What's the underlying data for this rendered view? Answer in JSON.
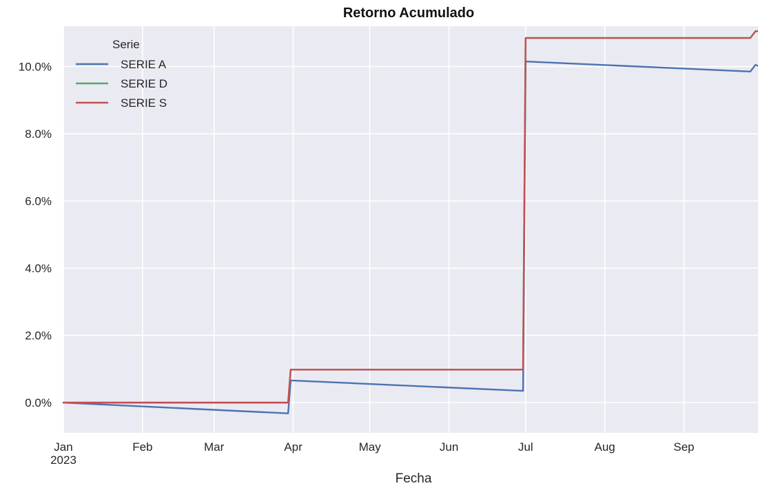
{
  "chart_data": {
    "type": "line",
    "title": "Retorno Acumulado",
    "xlabel": "Fecha",
    "ylabel": "",
    "x_range": [
      "2023-01-01",
      "2023-09-30"
    ],
    "ylim": [
      -0.9,
      11.2
    ],
    "y_format": "percent_one_decimal",
    "grid": true,
    "background": "#eaeaf2",
    "legend": {
      "title": "Serie",
      "placement": "top-left"
    },
    "x_ticks": [
      {
        "date": "2023-01-01",
        "label": "Jan",
        "sublabel": "2023"
      },
      {
        "date": "2023-02-01",
        "label": "Feb"
      },
      {
        "date": "2023-03-01",
        "label": "Mar"
      },
      {
        "date": "2023-04-01",
        "label": "Apr"
      },
      {
        "date": "2023-05-01",
        "label": "May"
      },
      {
        "date": "2023-06-01",
        "label": "Jun"
      },
      {
        "date": "2023-07-01",
        "label": "Jul"
      },
      {
        "date": "2023-08-01",
        "label": "Aug"
      },
      {
        "date": "2023-09-01",
        "label": "Sep"
      }
    ],
    "y_ticks": [
      0,
      2,
      4,
      6,
      8,
      10
    ],
    "series": [
      {
        "name": "SERIE A",
        "color": "#4c72b0",
        "points": [
          [
            "2023-01-01",
            0.0
          ],
          [
            "2023-03-30",
            -0.32
          ],
          [
            "2023-03-31",
            0.66
          ],
          [
            "2023-06-30",
            0.35
          ],
          [
            "2023-07-01",
            10.15
          ],
          [
            "2023-09-27",
            9.85
          ],
          [
            "2023-09-29",
            10.05
          ],
          [
            "2023-09-30",
            10.02
          ]
        ]
      },
      {
        "name": "SERIE D",
        "color": "#55a868",
        "points": [
          [
            "2023-01-01",
            0.0
          ],
          [
            "2023-03-30",
            0.0
          ],
          [
            "2023-03-31",
            0.98
          ],
          [
            "2023-06-30",
            0.98
          ],
          [
            "2023-07-01",
            10.85
          ],
          [
            "2023-09-27",
            10.85
          ],
          [
            "2023-09-29",
            11.05
          ],
          [
            "2023-09-30",
            11.05
          ]
        ]
      },
      {
        "name": "SERIE S",
        "color": "#c44e52",
        "points": [
          [
            "2023-01-01",
            0.0
          ],
          [
            "2023-03-30",
            0.0
          ],
          [
            "2023-03-31",
            0.98
          ],
          [
            "2023-06-30",
            0.98
          ],
          [
            "2023-07-01",
            10.85
          ],
          [
            "2023-09-27",
            10.85
          ],
          [
            "2023-09-29",
            11.05
          ],
          [
            "2023-09-30",
            11.05
          ]
        ]
      }
    ]
  }
}
